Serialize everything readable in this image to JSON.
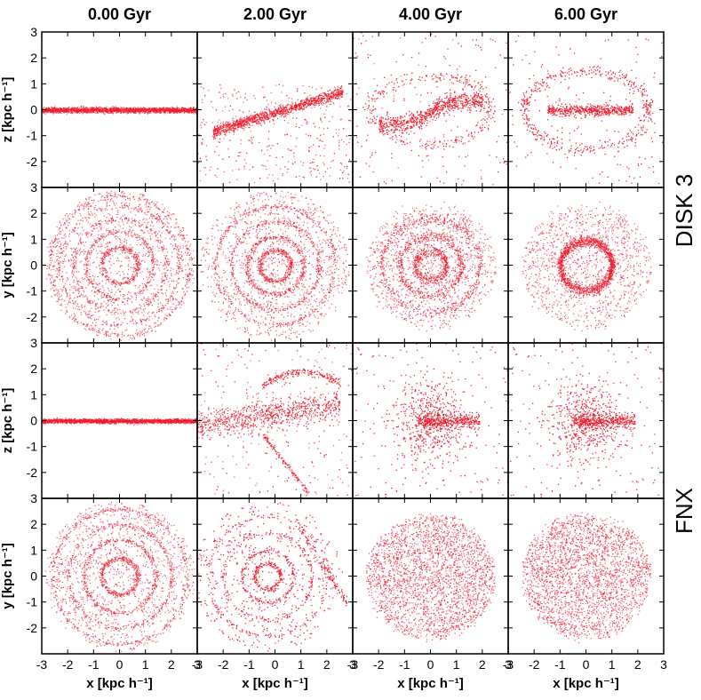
{
  "columns": [
    {
      "title": "0.00 Gyr"
    },
    {
      "title": "2.00 Gyr"
    },
    {
      "title": "4.00 Gyr"
    },
    {
      "title": "6.00 Gyr"
    }
  ],
  "row_groups": [
    {
      "label": "DISK 3"
    },
    {
      "label": "FNX"
    }
  ],
  "axis_labels": {
    "xz_ylabel": "z [kpc h⁻¹]",
    "xy_ylabel": "y [kpc h⁻¹]",
    "xlabel": "x [kpc h⁻¹]"
  },
  "colors": {
    "points": "#ee1c2e",
    "frame": "#000000"
  },
  "chart_data": {
    "type": "scatter",
    "xlim": [
      -3,
      3
    ],
    "ylim": [
      -3,
      3
    ],
    "xticks": [
      -3,
      -2,
      -1,
      0,
      1,
      2,
      3
    ],
    "yticks": [
      -2,
      -1,
      0,
      1,
      2,
      3
    ],
    "grid": false,
    "panels": [
      {
        "row": 0,
        "col": 0,
        "model": "DISK 3",
        "projection": "x-z",
        "time": "0.00 Gyr",
        "morphology": "thin flat disk",
        "extent_x": [
          -3,
          3
        ],
        "thickness": 0.15,
        "tilt_deg": 0
      },
      {
        "row": 0,
        "col": 1,
        "model": "DISK 3",
        "projection": "x-z",
        "time": "2.00 Gyr",
        "morphology": "tilted disk with diffuse halo",
        "extent_x": [
          -2.4,
          2.6
        ],
        "thickness": 0.3,
        "tilt_deg": 17
      },
      {
        "row": 0,
        "col": 2,
        "model": "DISK 3",
        "projection": "x-z",
        "time": "4.00 Gyr",
        "morphology": "S-shaped warped disk with shell",
        "extent_x": [
          -2.0,
          2.0
        ],
        "thickness": 0.45
      },
      {
        "row": 0,
        "col": 3,
        "model": "DISK 3",
        "projection": "x-z",
        "time": "6.00 Gyr",
        "morphology": "central bar with elliptical shell",
        "extent_x": [
          -1.5,
          1.8
        ],
        "thickness": 0.3
      },
      {
        "row": 1,
        "col": 0,
        "model": "DISK 3",
        "projection": "x-y",
        "time": "0.00 Gyr",
        "morphology": "concentric rings",
        "ring_radii": [
          0.7,
          1.3,
          1.8,
          2.3,
          2.7
        ]
      },
      {
        "row": 1,
        "col": 1,
        "model": "DISK 3",
        "projection": "x-y",
        "time": "2.00 Gyr",
        "morphology": "rings with mild asymmetry",
        "ring_radii": [
          0.6,
          1.1,
          1.7,
          2.3
        ]
      },
      {
        "row": 1,
        "col": 2,
        "model": "DISK 3",
        "projection": "x-y",
        "time": "4.00 Gyr",
        "morphology": "faint rings",
        "ring_radii": [
          0.6,
          1.2,
          1.9
        ]
      },
      {
        "row": 1,
        "col": 3,
        "model": "DISK 3",
        "projection": "x-y",
        "time": "6.00 Gyr",
        "morphology": "mostly uniform disk",
        "ring_radii": [
          1.0
        ]
      },
      {
        "row": 2,
        "col": 0,
        "model": "FNX",
        "projection": "x-z",
        "time": "0.00 Gyr",
        "morphology": "thin flat disk",
        "extent_x": [
          -3,
          3
        ],
        "thickness": 0.12,
        "tilt_deg": 0
      },
      {
        "row": 2,
        "col": 1,
        "model": "FNX",
        "projection": "x-z",
        "time": "2.00 Gyr",
        "morphology": "disrupted disk with tidal arc",
        "extent_x": [
          -3,
          2.5
        ],
        "thickness": 0.6
      },
      {
        "row": 2,
        "col": 2,
        "model": "FNX",
        "projection": "x-z",
        "time": "4.00 Gyr",
        "morphology": "diffuse spheroid with bar",
        "extent_x": [
          -2,
          2
        ],
        "thickness": 1.2
      },
      {
        "row": 2,
        "col": 3,
        "model": "FNX",
        "projection": "x-z",
        "time": "6.00 Gyr",
        "morphology": "diffuse spheroid with bar",
        "extent_x": [
          -2,
          2
        ],
        "thickness": 1.1
      },
      {
        "row": 3,
        "col": 0,
        "model": "FNX",
        "projection": "x-y",
        "time": "0.00 Gyr",
        "morphology": "concentric rings",
        "ring_radii": [
          0.7,
          1.4,
          2.0,
          2.6
        ]
      },
      {
        "row": 3,
        "col": 1,
        "model": "FNX",
        "projection": "x-y",
        "time": "2.00 Gyr",
        "morphology": "disturbed rings with tidal tail",
        "ring_radii": [
          0.5,
          1.0,
          1.7,
          2.3
        ]
      },
      {
        "row": 3,
        "col": 2,
        "model": "FNX",
        "projection": "x-y",
        "time": "4.00 Gyr",
        "morphology": "diffuse disk",
        "ring_radii": []
      },
      {
        "row": 3,
        "col": 3,
        "model": "FNX",
        "projection": "x-y",
        "time": "6.00 Gyr",
        "morphology": "diffuse disk",
        "ring_radii": []
      }
    ]
  }
}
